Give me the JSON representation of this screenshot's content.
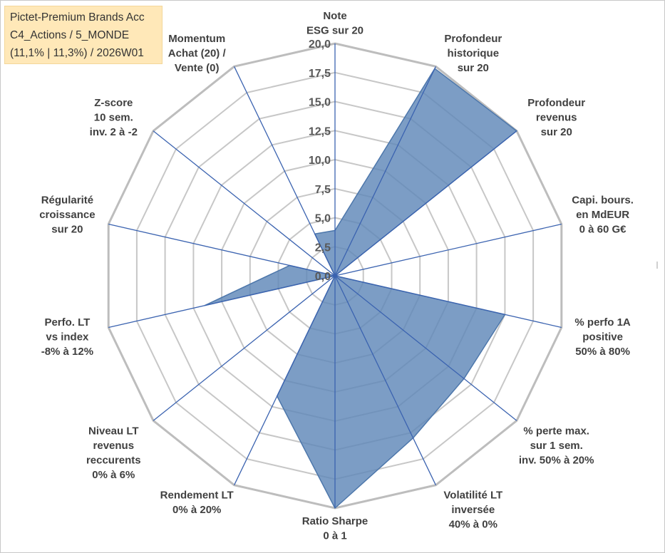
{
  "info_box": {
    "line1": "Pictet-Premium Brands Acc",
    "line2": "C4_Actions / 5_MONDE",
    "line3": "(11,1% | 11,3%) / 2026W01"
  },
  "colors": {
    "fill": "#5f87b8",
    "outline": "#4d77ab",
    "axis": "#3b63b0",
    "grid": "#c7c7c7"
  },
  "chart_data": {
    "type": "radar",
    "title": "",
    "rmin": 0,
    "rmax": 20,
    "tick_step": 2.5,
    "tick_labels": [
      "0,0",
      "2,5",
      "5,0",
      "7,5",
      "10,0",
      "12,5",
      "15,0",
      "17,5",
      "20,0"
    ],
    "axes": [
      [
        "Note",
        "ESG sur 20"
      ],
      [
        "Profondeur",
        "historique",
        "sur 20"
      ],
      [
        "Profondeur",
        "revenus",
        "sur 20"
      ],
      [
        "Capi. bours.",
        "en MdEUR",
        "0 à 60 G€"
      ],
      [
        "% perfo 1A",
        "positive",
        "50% à 80%"
      ],
      [
        "% perte max.",
        "sur 1 sem.",
        "inv. 50% à 20%"
      ],
      [
        "Volatilité LT",
        "inversée",
        "40% à 0%"
      ],
      [
        "Ratio Sharpe",
        "0 à 1"
      ],
      [
        "Rendement LT",
        "0% à 20%"
      ],
      [
        "Niveau LT",
        "revenus",
        "reccurents",
        "0% à 6%"
      ],
      [
        "Perfo. LT",
        "vs index",
        "-8% à 12%"
      ],
      [
        "Régularité",
        "croissance",
        "sur 20"
      ],
      [
        "Z-score",
        "10 sem.",
        "inv. 2 à -2"
      ],
      [
        "Momentum",
        "Achat (20) /",
        "Vente (0)"
      ]
    ],
    "values": [
      3.9,
      19.8,
      20.0,
      0.0,
      15.0,
      14.2,
      15.5,
      20.0,
      11.5,
      0.0,
      11.5,
      4.0,
      0.0,
      4.0
    ],
    "grid": true,
    "legend": "none"
  }
}
